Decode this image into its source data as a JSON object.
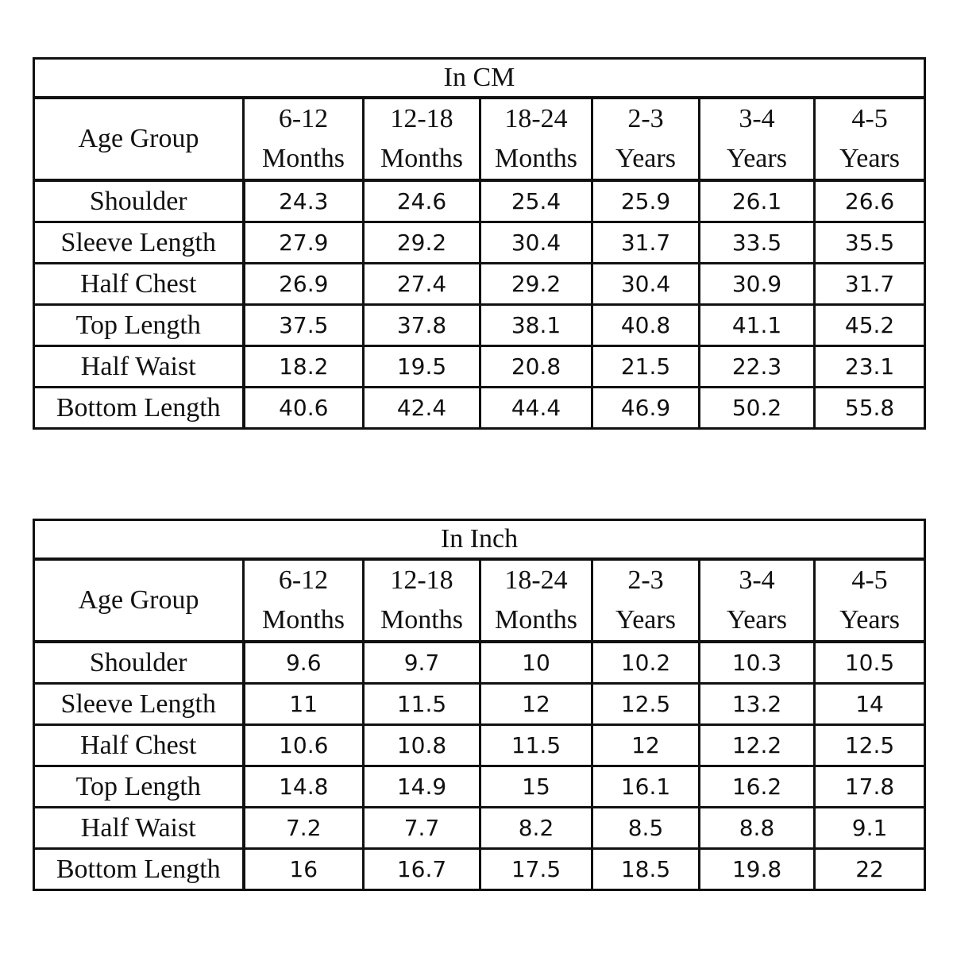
{
  "tables": [
    {
      "title": "In CM",
      "header": [
        [
          "Age Group"
        ],
        [
          "6-12",
          "Months"
        ],
        [
          "12-18",
          "Months"
        ],
        [
          "18-24",
          "Months"
        ],
        [
          "2-3",
          "Years"
        ],
        [
          "3-4",
          "Years"
        ],
        [
          "4-5",
          "Years"
        ]
      ],
      "rows": [
        [
          "Shoulder",
          "24.3",
          "24.6",
          "25.4",
          "25.9",
          "26.1",
          "26.6"
        ],
        [
          "Sleeve Length",
          "27.9",
          "29.2",
          "30.4",
          "31.7",
          "33.5",
          "35.5"
        ],
        [
          "Half Chest",
          "26.9",
          "27.4",
          "29.2",
          "30.4",
          "30.9",
          "31.7"
        ],
        [
          "Top Length",
          "37.5",
          "37.8",
          "38.1",
          "40.8",
          "41.1",
          "45.2"
        ],
        [
          "Half Waist",
          "18.2",
          "19.5",
          "20.8",
          "21.5",
          "22.3",
          "23.1"
        ],
        [
          "Bottom Length",
          "40.6",
          "42.4",
          "44.4",
          "46.9",
          "50.2",
          "55.8"
        ]
      ]
    },
    {
      "title": "In Inch",
      "header": [
        [
          "Age Group"
        ],
        [
          "6-12",
          "Months"
        ],
        [
          "12-18",
          "Months"
        ],
        [
          "18-24",
          "Months"
        ],
        [
          "2-3",
          "Years"
        ],
        [
          "3-4",
          "Years"
        ],
        [
          "4-5",
          "Years"
        ]
      ],
      "rows": [
        [
          "Shoulder",
          "9.6",
          "9.7",
          "10",
          "10.2",
          "10.3",
          "10.5"
        ],
        [
          "Sleeve Length",
          "11",
          "11.5",
          "12",
          "12.5",
          "13.2",
          "14"
        ],
        [
          "Half Chest",
          "10.6",
          "10.8",
          "11.5",
          "12",
          "12.2",
          "12.5"
        ],
        [
          "Top Length",
          "14.8",
          "14.9",
          "15",
          "16.1",
          "16.2",
          "17.8"
        ],
        [
          "Half Waist",
          "7.2",
          "7.7",
          "8.2",
          "8.5",
          "8.8",
          "9.1"
        ],
        [
          "Bottom Length",
          "16",
          "16.7",
          "17.5",
          "18.5",
          "19.8",
          "22"
        ]
      ]
    }
  ]
}
